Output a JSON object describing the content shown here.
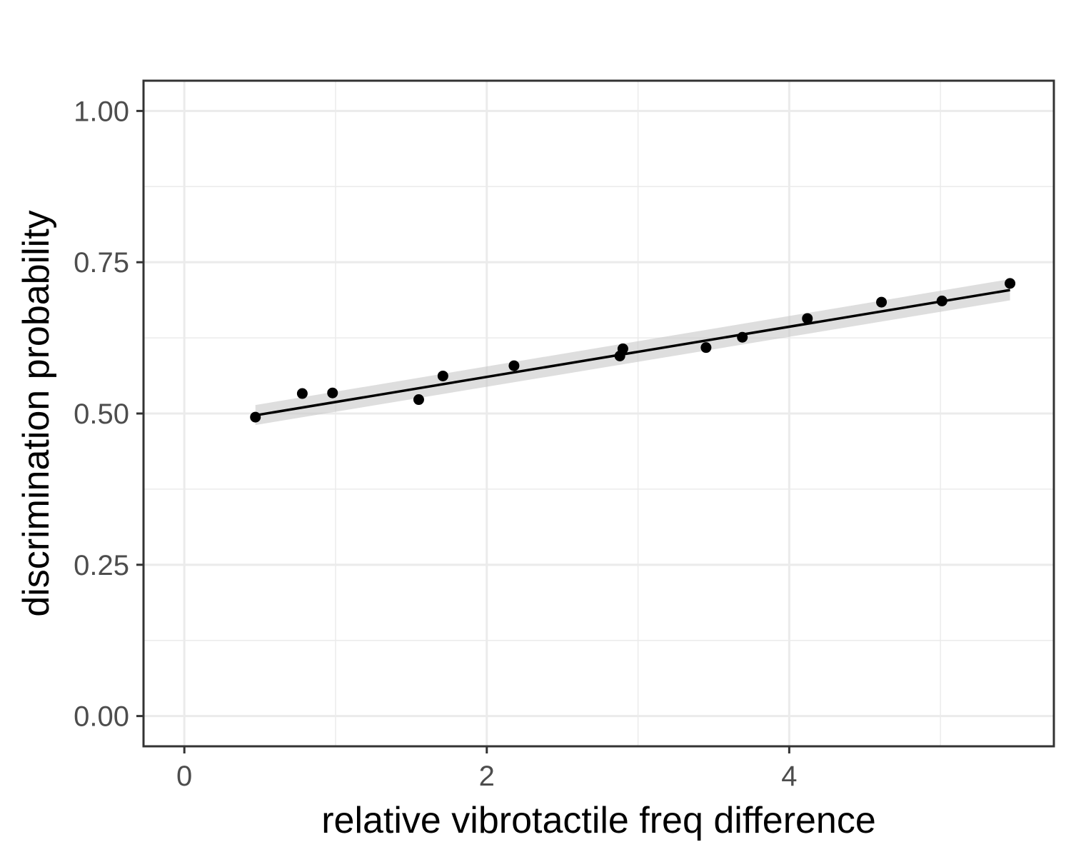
{
  "chart_data": {
    "type": "scatter",
    "title": "",
    "xlabel": "relative vibrotactile freq difference",
    "ylabel": "discrimination probability",
    "xlim": [
      -0.27,
      5.75
    ],
    "ylim": [
      -0.05,
      1.05
    ],
    "x_ticks": [
      0,
      2,
      4
    ],
    "x_tick_labels": [
      "0",
      "2",
      "4"
    ],
    "y_ticks": [
      0,
      0.25,
      0.5,
      0.75,
      1.0
    ],
    "y_tick_labels": [
      "0.00",
      "0.25",
      "0.50",
      "0.75",
      "1.00"
    ],
    "grid": true,
    "legend": "none",
    "series": [
      {
        "points": [
          {
            "x": 0.47,
            "y": 0.494
          },
          {
            "x": 0.78,
            "y": 0.533
          },
          {
            "x": 0.98,
            "y": 0.534
          },
          {
            "x": 1.55,
            "y": 0.523
          },
          {
            "x": 1.71,
            "y": 0.562
          },
          {
            "x": 2.18,
            "y": 0.579
          },
          {
            "x": 2.88,
            "y": 0.595
          },
          {
            "x": 2.9,
            "y": 0.607
          },
          {
            "x": 3.45,
            "y": 0.609
          },
          {
            "x": 3.69,
            "y": 0.626
          },
          {
            "x": 4.12,
            "y": 0.657
          },
          {
            "x": 4.61,
            "y": 0.684
          },
          {
            "x": 5.01,
            "y": 0.686
          },
          {
            "x": 5.46,
            "y": 0.715
          }
        ]
      }
    ],
    "fit": {
      "type": "linear",
      "x": [
        0.47,
        5.46
      ],
      "y": [
        0.497,
        0.704
      ],
      "ci_lower": [
        0.481,
        0.687
      ],
      "ci_upper": [
        0.514,
        0.722
      ]
    },
    "colors": {
      "points": "#000000",
      "fit_line": "#000000",
      "ci_band": "#c8c8c8",
      "panel_border": "#333333"
    }
  }
}
